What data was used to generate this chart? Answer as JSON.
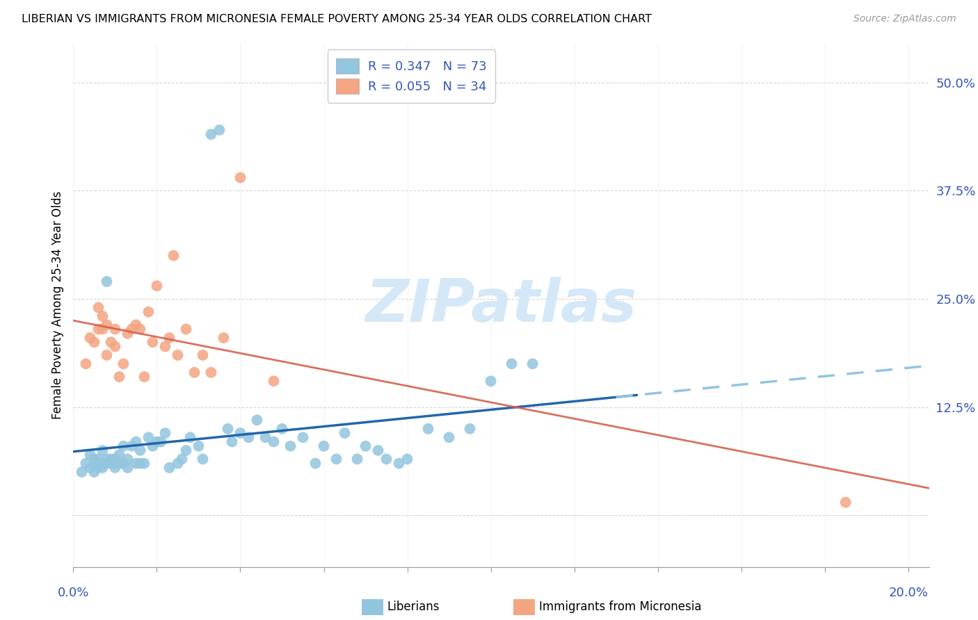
{
  "title": "LIBERIAN VS IMMIGRANTS FROM MICRONESIA FEMALE POVERTY AMONG 25-34 YEAR OLDS CORRELATION CHART",
  "source": "Source: ZipAtlas.com",
  "ylabel": "Female Poverty Among 25-34 Year Olds",
  "xlim": [
    0.0,
    0.205
  ],
  "ylim": [
    -0.06,
    0.545
  ],
  "yticks": [
    0.0,
    0.125,
    0.25,
    0.375,
    0.5
  ],
  "ytick_labels": [
    "",
    "12.5%",
    "25.0%",
    "37.5%",
    "50.0%"
  ],
  "xtick_vals": [
    0.0,
    0.02,
    0.04,
    0.06,
    0.08,
    0.1,
    0.12,
    0.14,
    0.16,
    0.18,
    0.2
  ],
  "blue_color": "#92c5de",
  "pink_color": "#f4a582",
  "blue_line_color": "#2166ac",
  "blue_dash_color": "#92c5de",
  "pink_line_color": "#d6604d",
  "tick_color": "#3355bb",
  "watermark_text": "ZIPatlas",
  "watermark_color": "#d5e8f8",
  "legend_label1": "Liberians",
  "legend_label2": "Immigrants from Micronesia",
  "blue_x": [
    0.002,
    0.003,
    0.004,
    0.004,
    0.005,
    0.005,
    0.005,
    0.006,
    0.006,
    0.006,
    0.007,
    0.007,
    0.007,
    0.008,
    0.008,
    0.008,
    0.009,
    0.009,
    0.01,
    0.01,
    0.01,
    0.011,
    0.011,
    0.012,
    0.012,
    0.013,
    0.013,
    0.014,
    0.015,
    0.015,
    0.016,
    0.016,
    0.017,
    0.018,
    0.019,
    0.02,
    0.021,
    0.022,
    0.023,
    0.025,
    0.026,
    0.027,
    0.028,
    0.03,
    0.031,
    0.033,
    0.035,
    0.037,
    0.038,
    0.04,
    0.042,
    0.044,
    0.046,
    0.048,
    0.05,
    0.052,
    0.055,
    0.058,
    0.06,
    0.063,
    0.065,
    0.068,
    0.07,
    0.073,
    0.075,
    0.078,
    0.08,
    0.085,
    0.09,
    0.095,
    0.1,
    0.105,
    0.11
  ],
  "blue_y": [
    0.05,
    0.06,
    0.055,
    0.07,
    0.05,
    0.06,
    0.065,
    0.055,
    0.06,
    0.065,
    0.055,
    0.06,
    0.075,
    0.06,
    0.065,
    0.27,
    0.06,
    0.065,
    0.055,
    0.06,
    0.065,
    0.06,
    0.07,
    0.06,
    0.08,
    0.055,
    0.065,
    0.08,
    0.06,
    0.085,
    0.06,
    0.075,
    0.06,
    0.09,
    0.08,
    0.085,
    0.085,
    0.095,
    0.055,
    0.06,
    0.065,
    0.075,
    0.09,
    0.08,
    0.065,
    0.44,
    0.445,
    0.1,
    0.085,
    0.095,
    0.09,
    0.11,
    0.09,
    0.085,
    0.1,
    0.08,
    0.09,
    0.06,
    0.08,
    0.065,
    0.095,
    0.065,
    0.08,
    0.075,
    0.065,
    0.06,
    0.065,
    0.1,
    0.09,
    0.1,
    0.155,
    0.175,
    0.175
  ],
  "pink_x": [
    0.003,
    0.004,
    0.005,
    0.006,
    0.006,
    0.007,
    0.007,
    0.008,
    0.008,
    0.009,
    0.01,
    0.01,
    0.011,
    0.012,
    0.013,
    0.014,
    0.015,
    0.016,
    0.017,
    0.018,
    0.019,
    0.02,
    0.022,
    0.023,
    0.024,
    0.025,
    0.027,
    0.029,
    0.031,
    0.033,
    0.036,
    0.04,
    0.048,
    0.185
  ],
  "pink_y": [
    0.175,
    0.205,
    0.2,
    0.24,
    0.215,
    0.215,
    0.23,
    0.185,
    0.22,
    0.2,
    0.195,
    0.215,
    0.16,
    0.175,
    0.21,
    0.215,
    0.22,
    0.215,
    0.16,
    0.235,
    0.2,
    0.265,
    0.195,
    0.205,
    0.3,
    0.185,
    0.215,
    0.165,
    0.185,
    0.165,
    0.205,
    0.39,
    0.155,
    0.015
  ]
}
